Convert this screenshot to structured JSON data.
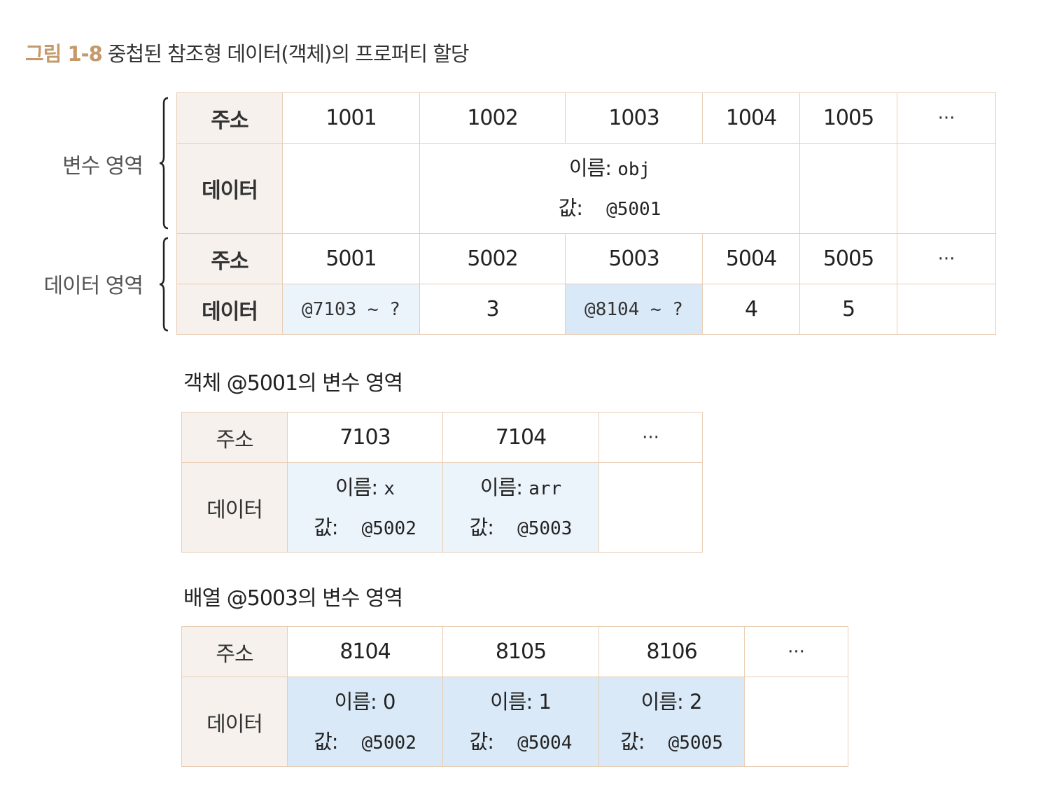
{
  "caption": {
    "figure": "그림 1-8",
    "title": "중첩된 참조형 데이터(객체)의 프로퍼티 할당"
  },
  "labels": {
    "address": "주소",
    "data": "데이터",
    "ellipsis": "···",
    "name_prefix": "이름:",
    "value_prefix": "값:"
  },
  "regions": {
    "variable": "변수 영역",
    "data": "데이터 영역"
  },
  "variable_area": {
    "addresses": [
      "1001",
      "1002",
      "1003",
      "1004",
      "1005"
    ],
    "entry": {
      "name": "obj",
      "value": "@5001"
    }
  },
  "data_area": {
    "addresses": [
      "5001",
      "5002",
      "5003",
      "5004",
      "5005"
    ],
    "values": [
      "@7103 ~ ?",
      "3",
      "@8104 ~ ?",
      "4",
      "5"
    ]
  },
  "object_area": {
    "title": "객체 @5001의 변수 영역",
    "addresses": [
      "7103",
      "7104"
    ],
    "entries": [
      {
        "name": "x",
        "value": "@5002"
      },
      {
        "name": "arr",
        "value": "@5003"
      }
    ]
  },
  "array_area": {
    "title": "배열 @5003의 변수 영역",
    "addresses": [
      "8104",
      "8105",
      "8106"
    ],
    "entries": [
      {
        "name": "0",
        "value": "@5002"
      },
      {
        "name": "1",
        "value": "@5004"
      },
      {
        "name": "2",
        "value": "@5005"
      }
    ]
  }
}
